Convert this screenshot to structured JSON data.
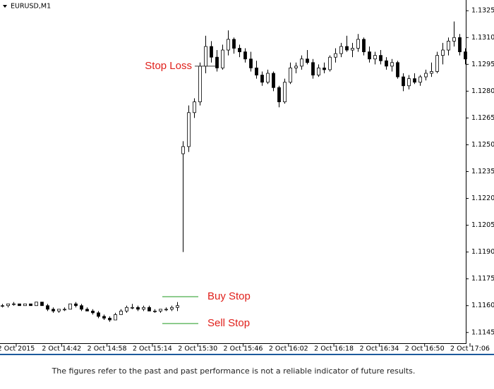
{
  "chart_data": {
    "type": "candlestick",
    "title": "EURUSD,M1",
    "footer": "The figures refer to the past and past performance is not a reliable indicator of future results.",
    "xticks": [
      "2 Oct 2015",
      "2 Oct 14:42",
      "2 Oct 14:58",
      "2 Oct 15:14",
      "2 Oct 15:30",
      "2 Oct 15:46",
      "2 Oct 16:02",
      "2 Oct 16:18",
      "2 Oct 16:34",
      "2 Oct 16:50",
      "2 Oct 17:06"
    ],
    "ylim": [
      1.1139,
      1.1331
    ],
    "yticks": [
      1.1145,
      {
        "value": 1.116,
        "label": "1.1160"
      },
      1.1175,
      {
        "value": 1.119,
        "label": "1.1190"
      },
      1.1205,
      {
        "value": 1.122,
        "label": "1.1220"
      },
      1.1235,
      {
        "value": 1.125,
        "label": "1.1250"
      },
      1.1265,
      {
        "value": 1.128,
        "label": "1.1280"
      },
      1.1295,
      {
        "value": 1.131,
        "label": "1.1310"
      },
      1.1325
    ],
    "up_color": "#ffffff",
    "down_color": "#000000",
    "wick_color": "#000000",
    "levels": [
      {
        "label": "Buy Stop",
        "value": 1.1165,
        "color": "#1e9a1e"
      },
      {
        "label": "Sell Stop",
        "value": 1.115,
        "color": "#1e9a1e"
      },
      {
        "label": "Stop Loss",
        "value": 1.1294,
        "color": "#333333"
      }
    ],
    "open": [
      1.116,
      1.116,
      1.1161,
      1.1161,
      1.116,
      1.1161,
      1.116,
      1.1162,
      1.116,
      1.1158,
      1.1157,
      1.1158,
      1.1158,
      1.1161,
      1.116,
      1.1158,
      1.1157,
      1.1156,
      1.1154,
      1.1153,
      1.1152,
      1.1155,
      1.1157,
      1.1159,
      1.1159,
      1.1158,
      1.1159,
      1.1157,
      1.1157,
      1.1158,
      1.1158,
      1.1159,
      1.1245,
      1.1249,
      1.1268,
      1.1274,
      1.1294,
      1.1305,
      1.1299,
      1.1293,
      1.1303,
      1.1309,
      1.1304,
      1.1302,
      1.1298,
      1.1293,
      1.1289,
      1.1285,
      1.129,
      1.1282,
      1.1274,
      1.1285,
      1.1293,
      1.1294,
      1.1298,
      1.1296,
      1.1289,
      1.1293,
      1.1292,
      1.1299,
      1.1301,
      1.1305,
      1.1303,
      1.1304,
      1.1309,
      1.1302,
      1.1298,
      1.13,
      1.1297,
      1.1294,
      1.1296,
      1.1288,
      1.1283,
      1.1287,
      1.1285,
      1.1288,
      1.129,
      1.1291,
      1.13,
      1.1303,
      1.1308,
      1.131,
      1.1302
    ],
    "high": [
      1.1161,
      1.1161,
      1.1162,
      1.1161,
      1.1161,
      1.1161,
      1.1162,
      1.1162,
      1.1161,
      1.1159,
      1.1158,
      1.1159,
      1.1161,
      1.1162,
      1.1161,
      1.1159,
      1.1158,
      1.1157,
      1.1155,
      1.1154,
      1.1156,
      1.1158,
      1.116,
      1.1161,
      1.116,
      1.116,
      1.116,
      1.1158,
      1.1158,
      1.1159,
      1.116,
      1.1162,
      1.1252,
      1.1272,
      1.1276,
      1.1296,
      1.1311,
      1.1308,
      1.1303,
      1.1306,
      1.1314,
      1.131,
      1.1306,
      1.1304,
      1.1302,
      1.1297,
      1.1291,
      1.1292,
      1.1291,
      1.1283,
      1.1287,
      1.1296,
      1.1296,
      1.13,
      1.1303,
      1.1298,
      1.1295,
      1.1296,
      1.13,
      1.1304,
      1.1307,
      1.1311,
      1.1307,
      1.1312,
      1.131,
      1.1305,
      1.1302,
      1.1303,
      1.1299,
      1.1298,
      1.1297,
      1.129,
      1.1289,
      1.129,
      1.1289,
      1.1292,
      1.1296,
      1.1302,
      1.1307,
      1.131,
      1.1319,
      1.1312,
      1.1304
    ],
    "low": [
      1.1159,
      1.1159,
      1.116,
      1.116,
      1.116,
      1.116,
      1.116,
      1.116,
      1.1157,
      1.1156,
      1.1156,
      1.1157,
      1.1158,
      1.1159,
      1.1157,
      1.1157,
      1.1155,
      1.1153,
      1.1152,
      1.1151,
      1.1152,
      1.1155,
      1.1156,
      1.1158,
      1.1157,
      1.1157,
      1.1157,
      1.1156,
      1.1156,
      1.1157,
      1.1157,
      1.1157,
      1.119,
      1.1246,
      1.1265,
      1.1272,
      1.129,
      1.1296,
      1.1291,
      1.1292,
      1.13,
      1.1301,
      1.1299,
      1.1296,
      1.1291,
      1.1287,
      1.1283,
      1.1284,
      1.128,
      1.1271,
      1.1273,
      1.1284,
      1.129,
      1.1292,
      1.1295,
      1.1287,
      1.1288,
      1.129,
      1.1291,
      1.1296,
      1.1299,
      1.1302,
      1.1299,
      1.1302,
      1.13,
      1.1296,
      1.1295,
      1.1295,
      1.1292,
      1.1291,
      1.1287,
      1.128,
      1.1281,
      1.1284,
      1.1283,
      1.1286,
      1.1288,
      1.129,
      1.1295,
      1.13,
      1.1305,
      1.13,
      1.1295
    ],
    "close": [
      1.116,
      1.1161,
      1.1161,
      1.116,
      1.1161,
      1.116,
      1.1162,
      1.116,
      1.1158,
      1.1157,
      1.1158,
      1.1158,
      1.1161,
      1.116,
      1.1158,
      1.1157,
      1.1156,
      1.1154,
      1.1153,
      1.1152,
      1.1155,
      1.1157,
      1.1159,
      1.1159,
      1.1158,
      1.1159,
      1.1157,
      1.1157,
      1.1158,
      1.1158,
      1.1159,
      1.116,
      1.1249,
      1.1268,
      1.1274,
      1.1294,
      1.1305,
      1.1299,
      1.1293,
      1.1303,
      1.1309,
      1.1304,
      1.1302,
      1.1298,
      1.1293,
      1.1289,
      1.1285,
      1.129,
      1.1282,
      1.1274,
      1.1285,
      1.1293,
      1.1294,
      1.1298,
      1.1296,
      1.1289,
      1.1293,
      1.1292,
      1.1299,
      1.1301,
      1.1305,
      1.1303,
      1.1304,
      1.1309,
      1.1302,
      1.1298,
      1.13,
      1.1297,
      1.1294,
      1.1296,
      1.1288,
      1.1283,
      1.1287,
      1.1285,
      1.1288,
      1.129,
      1.1291,
      1.13,
      1.1303,
      1.1308,
      1.131,
      1.1302,
      1.1298
    ]
  }
}
